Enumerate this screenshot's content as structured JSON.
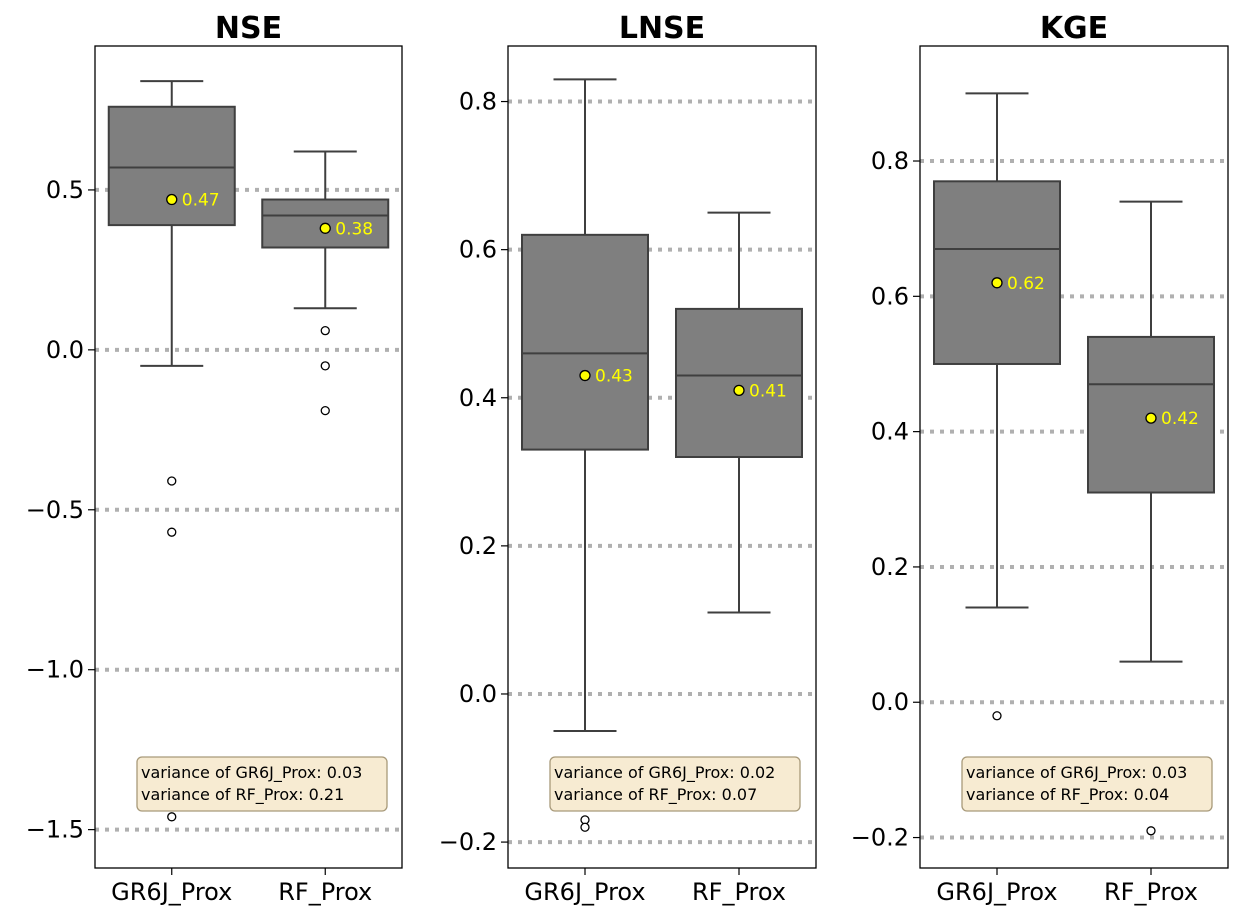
{
  "chart_data": [
    {
      "type": "boxplot",
      "title": "NSE",
      "ylim": [
        -1.62,
        0.95
      ],
      "yticks": [
        0.5,
        0.0,
        -0.5,
        -1.0,
        -1.5
      ],
      "ytick_labels": [
        "0.5",
        "0.0",
        "−0.5",
        "−1.0",
        "−1.5"
      ],
      "categories": [
        "GR6J_Prox",
        "RF_Prox"
      ],
      "grid": "horizontal dotted",
      "boxes": [
        {
          "name": "GR6J_Prox",
          "whisker_low": -0.05,
          "q1": 0.39,
          "median": 0.57,
          "q3": 0.76,
          "whisker_high": 0.84,
          "mean": 0.47,
          "mean_label": "0.47",
          "outliers": [
            -0.41,
            -0.57,
            -1.46
          ]
        },
        {
          "name": "RF_Prox",
          "whisker_low": 0.13,
          "q1": 0.32,
          "median": 0.42,
          "q3": 0.47,
          "whisker_high": 0.62,
          "mean": 0.38,
          "mean_label": "0.38",
          "outliers": [
            0.06,
            -0.05,
            -0.19
          ]
        }
      ],
      "variance_lines": [
        "variance of GR6J_Prox: 0.03",
        "variance of RF_Prox: 0.21"
      ]
    },
    {
      "type": "boxplot",
      "title": "LNSE",
      "ylim": [
        -0.235,
        0.875
      ],
      "yticks": [
        0.8,
        0.6,
        0.4,
        0.2,
        0.0,
        -0.2
      ],
      "ytick_labels": [
        "0.8",
        "0.6",
        "0.4",
        "0.2",
        "0.0",
        "−0.2"
      ],
      "categories": [
        "GR6J_Prox",
        "RF_Prox"
      ],
      "grid": "horizontal dotted",
      "boxes": [
        {
          "name": "GR6J_Prox",
          "whisker_low": -0.05,
          "q1": 0.33,
          "median": 0.46,
          "q3": 0.62,
          "whisker_high": 0.83,
          "mean": 0.43,
          "mean_label": "0.43",
          "outliers": [
            -0.17,
            -0.18
          ]
        },
        {
          "name": "RF_Prox",
          "whisker_low": 0.11,
          "q1": 0.32,
          "median": 0.43,
          "q3": 0.52,
          "whisker_high": 0.65,
          "mean": 0.41,
          "mean_label": "0.41",
          "outliers": []
        }
      ],
      "variance_lines": [
        "variance of GR6J_Prox: 0.02",
        "variance of RF_Prox: 0.07"
      ]
    },
    {
      "type": "boxplot",
      "title": "KGE",
      "ylim": [
        -0.245,
        0.97
      ],
      "yticks": [
        0.8,
        0.6,
        0.4,
        0.2,
        0.0,
        -0.2
      ],
      "ytick_labels": [
        "0.8",
        "0.6",
        "0.4",
        "0.2",
        "0.0",
        "−0.2"
      ],
      "categories": [
        "GR6J_Prox",
        "RF_Prox"
      ],
      "grid": "horizontal dotted",
      "boxes": [
        {
          "name": "GR6J_Prox",
          "whisker_low": 0.14,
          "q1": 0.5,
          "median": 0.67,
          "q3": 0.77,
          "whisker_high": 0.9,
          "mean": 0.62,
          "mean_label": "0.62",
          "outliers": [
            -0.02
          ]
        },
        {
          "name": "RF_Prox",
          "whisker_low": 0.06,
          "q1": 0.31,
          "median": 0.47,
          "q3": 0.54,
          "whisker_high": 0.74,
          "mean": 0.42,
          "mean_label": "0.42",
          "outliers": [
            -0.19
          ]
        }
      ],
      "variance_lines": [
        "variance of GR6J_Prox: 0.03",
        "variance of RF_Prox: 0.04"
      ]
    }
  ],
  "colors": {
    "box_fill": "#7f7f7f",
    "box_edge": "#3f3f3f",
    "grid": "#b0b0b0",
    "mean_marker": "#ffff00",
    "mean_label": "#ffff00",
    "annotation_bg": "#f7ebd2",
    "annotation_edge": "#a89a7a"
  }
}
